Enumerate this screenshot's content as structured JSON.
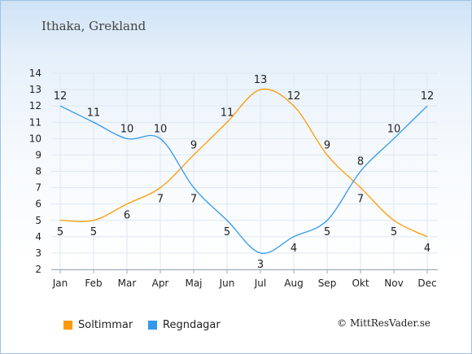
{
  "page": {
    "location": "Ithaka, Grekland",
    "copyright": "© MittResVader.se"
  },
  "colors": {
    "sun": "#ff9900",
    "rain": "#3399ee",
    "grid": "#dde7f1"
  },
  "chart_data": {
    "type": "line",
    "categories": [
      "Jan",
      "Feb",
      "Mar",
      "Apr",
      "Maj",
      "Jun",
      "Jul",
      "Aug",
      "Sep",
      "Okt",
      "Nov",
      "Dec"
    ],
    "ylim": [
      2,
      14
    ],
    "yticks": [
      2,
      3,
      4,
      5,
      6,
      7,
      8,
      9,
      10,
      11,
      12,
      13,
      14
    ],
    "grid": true,
    "legend_placement": "bottom-left",
    "series": [
      {
        "name": "Soltimmar",
        "color": "#ff9900",
        "values": [
          5,
          5,
          6,
          7,
          9,
          11,
          13,
          12,
          9,
          7,
          5,
          4
        ]
      },
      {
        "name": "Regndagar",
        "color": "#3399ee",
        "values": [
          12,
          11,
          10,
          10,
          7,
          5,
          3,
          4,
          5,
          8,
          10,
          12
        ]
      }
    ]
  }
}
